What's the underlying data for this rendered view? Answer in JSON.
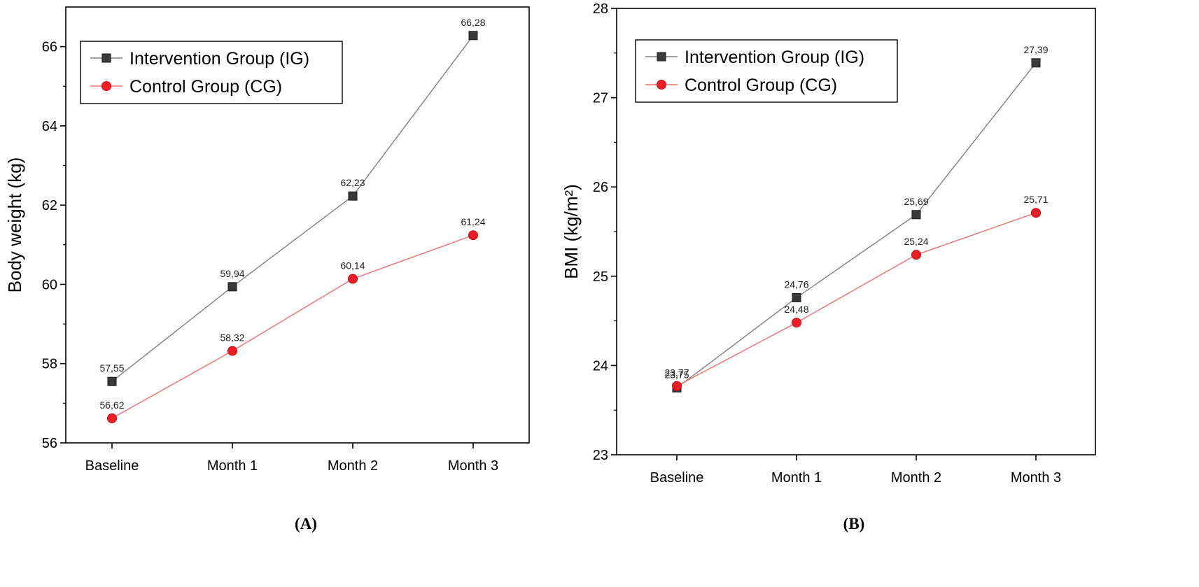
{
  "chart_data": [
    {
      "type": "line",
      "panel_label": "(A)",
      "ylabel": "Body weight (kg)",
      "xlabel": "",
      "categories": [
        "Baseline",
        "Month 1",
        "Month 2",
        "Month 3"
      ],
      "ylim": [
        56,
        67
      ],
      "yticks": [
        56,
        58,
        60,
        62,
        64,
        66
      ],
      "grid": false,
      "legend_position": "top-left",
      "series": [
        {
          "name": "Intervention Group (IG)",
          "marker": "square",
          "color": "#808080",
          "marker_color": "#3a3a3a",
          "values": [
            57.55,
            59.94,
            62.23,
            66.28
          ],
          "labels": [
            "57,55",
            "59,94",
            "62,23",
            "66,28"
          ]
        },
        {
          "name": "Control Group (CG)",
          "marker": "circle",
          "color": "#f07070",
          "marker_color": "#ee1c25",
          "values": [
            56.62,
            58.32,
            60.14,
            61.24
          ],
          "labels": [
            "56,62",
            "58,32",
            "60,14",
            "61,24"
          ]
        }
      ]
    },
    {
      "type": "line",
      "panel_label": "(B)",
      "ylabel": "BMI (kg/m²)",
      "xlabel": "",
      "categories": [
        "Baseline",
        "Month 1",
        "Month 2",
        "Month 3"
      ],
      "ylim": [
        23,
        28
      ],
      "yticks": [
        23,
        24,
        25,
        26,
        27,
        28
      ],
      "grid": false,
      "legend_position": "top-left",
      "series": [
        {
          "name": "Intervention Group (IG)",
          "marker": "square",
          "color": "#808080",
          "marker_color": "#3a3a3a",
          "values": [
            23.75,
            24.76,
            25.69,
            27.39
          ],
          "labels": [
            "23,75",
            "24,76",
            "25,69",
            "27,39"
          ]
        },
        {
          "name": "Control Group (CG)",
          "marker": "circle",
          "color": "#f07070",
          "marker_color": "#ee1c25",
          "values": [
            23.77,
            24.48,
            25.24,
            25.71
          ],
          "labels": [
            "23,77",
            "24,48",
            "25,24",
            "25,71"
          ]
        }
      ]
    }
  ]
}
